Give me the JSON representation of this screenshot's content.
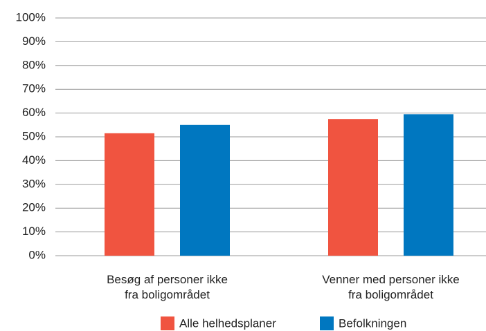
{
  "chart_data": {
    "type": "bar",
    "categories": [
      "Besøg af personer ikke\nfra boligområdet",
      "Venner med personer ikke\nfra boligområdet"
    ],
    "series": [
      {
        "name": "Alle helhedsplaner",
        "color": "#f05440",
        "values": [
          51.5,
          57.5
        ]
      },
      {
        "name": "Befolkningen",
        "color": "#0077c0",
        "values": [
          55,
          59.5
        ]
      }
    ],
    "ylim": [
      0,
      100
    ],
    "yticks": [
      {
        "value": 0,
        "label": "0%"
      },
      {
        "value": 10,
        "label": "10%"
      },
      {
        "value": 20,
        "label": "20%"
      },
      {
        "value": 30,
        "label": "30%"
      },
      {
        "value": 40,
        "label": "40%"
      },
      {
        "value": 50,
        "label": "50%"
      },
      {
        "value": 60,
        "label": "60%"
      },
      {
        "value": 70,
        "label": "70%"
      },
      {
        "value": 80,
        "label": "80%"
      },
      {
        "value": 90,
        "label": "90%"
      },
      {
        "value": 100,
        "label": "100%"
      }
    ],
    "grid": true,
    "legend": "bottom"
  }
}
